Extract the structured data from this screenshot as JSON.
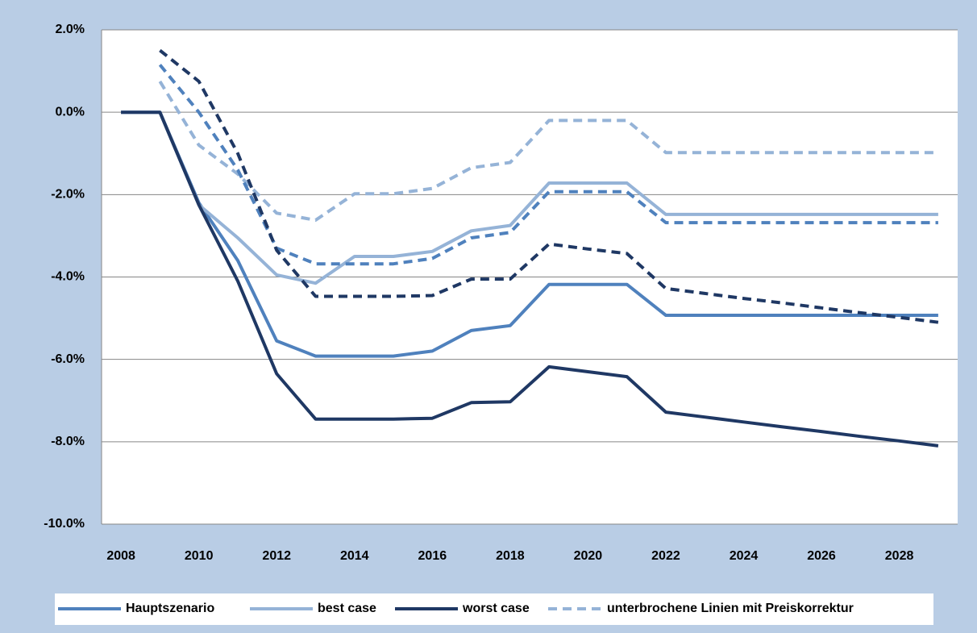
{
  "chart_data": {
    "type": "line",
    "x": [
      2008,
      2009,
      2010,
      2011,
      2012,
      2013,
      2014,
      2015,
      2016,
      2017,
      2018,
      2019,
      2020,
      2021,
      2022,
      2023,
      2024,
      2025,
      2026,
      2027,
      2028,
      2029
    ],
    "xlim": [
      2007.5,
      2029.5
    ],
    "xticks": [
      2008,
      2010,
      2012,
      2014,
      2016,
      2018,
      2020,
      2022,
      2024,
      2026,
      2028
    ],
    "ylim": [
      -10,
      2
    ],
    "yticks": [
      {
        "value": -10,
        "label": "-10.0%"
      },
      {
        "value": -8,
        "label": "-8.0%"
      },
      {
        "value": -6,
        "label": "-6.0%"
      },
      {
        "value": -4,
        "label": "-4.0%"
      },
      {
        "value": -2,
        "label": "-2.0%"
      },
      {
        "value": 0,
        "label": "0.0%"
      },
      {
        "value": 2,
        "label": "2.0%"
      }
    ],
    "grid": true,
    "legend_note": "unterbrochene Linien mit Preiskorrektur",
    "series": [
      {
        "name": "Hauptszenario",
        "color": "#4f81bd",
        "dashed": false,
        "values": [
          0,
          0,
          -2.2,
          -3.6,
          -5.55,
          -5.92,
          -5.92,
          -5.92,
          -5.8,
          -5.3,
          -5.18,
          -4.18,
          -4.18,
          -4.18,
          -4.93,
          -4.93,
          -4.93,
          -4.93,
          -4.93,
          -4.93,
          -4.93,
          -4.93
        ]
      },
      {
        "name": "best case",
        "color": "#95b3d7",
        "dashed": false,
        "values": [
          0,
          0,
          -2.25,
          -3.05,
          -3.95,
          -4.15,
          -3.5,
          -3.5,
          -3.38,
          -2.88,
          -2.75,
          -1.72,
          -1.72,
          -1.72,
          -2.48,
          -2.48,
          -2.48,
          -2.48,
          -2.48,
          -2.48,
          -2.48,
          -2.48
        ]
      },
      {
        "name": "worst case",
        "color": "#1f3864",
        "dashed": false,
        "values": [
          0,
          0,
          -2.25,
          -4.1,
          -6.35,
          -7.45,
          -7.45,
          -7.45,
          -7.43,
          -7.05,
          -7.03,
          -6.18,
          -6.3,
          -6.42,
          -7.28,
          -7.4,
          -7.52,
          -7.64,
          -7.75,
          -7.87,
          -7.98,
          -8.1
        ]
      },
      {
        "color": "#95b3d7",
        "dashed": true,
        "values": [
          null,
          0.75,
          -0.8,
          -1.5,
          -2.45,
          -2.62,
          -1.98,
          -1.98,
          -1.85,
          -1.35,
          -1.22,
          -0.2,
          -0.2,
          -0.2,
          -0.98,
          -0.98,
          -0.98,
          -0.98,
          -0.98,
          -0.98,
          -0.98,
          -0.98
        ]
      },
      {
        "color": "#4f81bd",
        "dashed": true,
        "values": [
          null,
          1.15,
          0,
          -1.4,
          -3.3,
          -3.68,
          -3.68,
          -3.68,
          -3.55,
          -3.05,
          -2.92,
          -1.93,
          -1.93,
          -1.93,
          -2.68,
          -2.68,
          -2.68,
          -2.68,
          -2.68,
          -2.68,
          -2.68,
          -2.68
        ]
      },
      {
        "color": "#1f3864",
        "dashed": true,
        "values": [
          null,
          1.5,
          0.75,
          -1.0,
          -3.35,
          -4.47,
          -4.47,
          -4.47,
          -4.45,
          -4.05,
          -4.05,
          -3.2,
          -3.32,
          -3.43,
          -4.28,
          -4.4,
          -4.52,
          -4.63,
          -4.75,
          -4.87,
          -4.98,
          -5.1
        ]
      }
    ]
  }
}
